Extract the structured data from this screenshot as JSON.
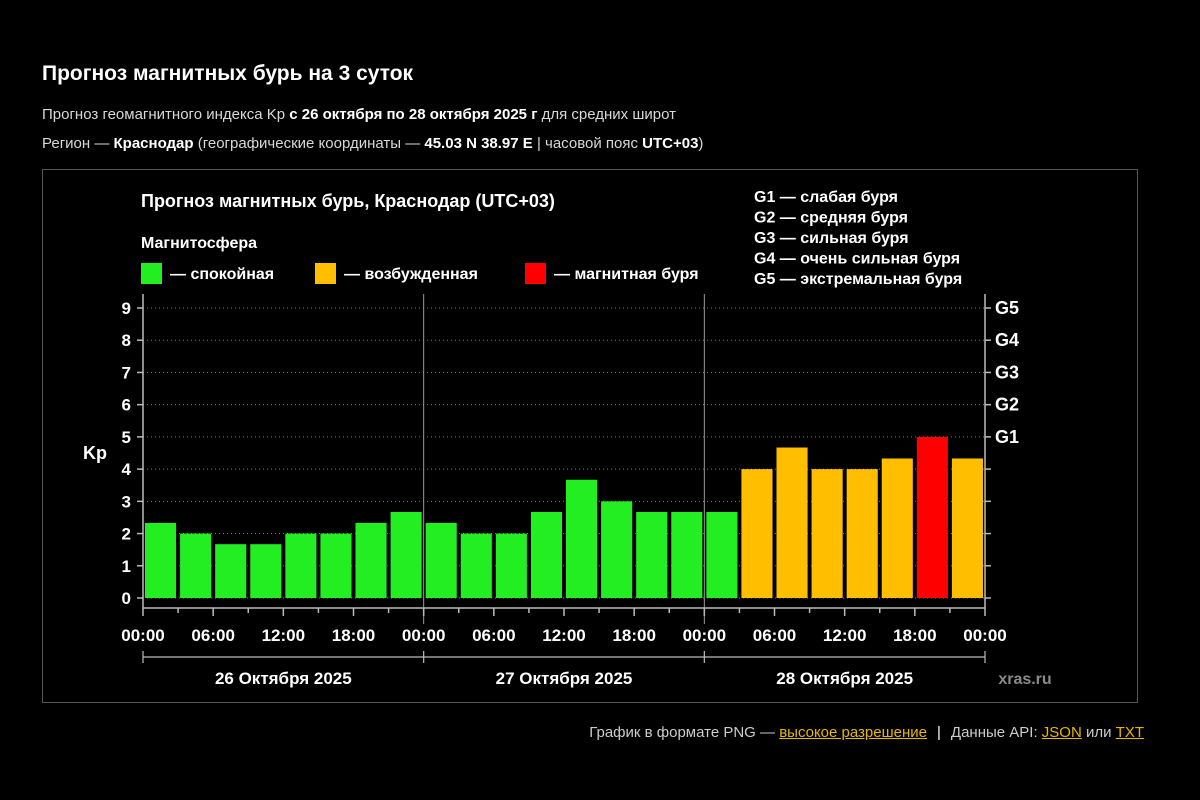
{
  "page": {
    "title": "Прогноз магнитных бурь на 3 суток",
    "line1": {
      "prefix": "Прогноз геомагнитного индекса Kp ",
      "range": "с 26 октября по 28 октября 2025 г",
      "suffix": " для средних широт"
    },
    "line2": {
      "prefix": "Регион — ",
      "region": "Краснодар",
      "mid": " (географические координаты — ",
      "coords": "45.03 N 38.97 E",
      "tz_label": " | часовой пояс ",
      "tz": "UTC+03",
      "end": ")"
    }
  },
  "footer": {
    "png_text": "График в формате PNG — ",
    "png_link": "высокое разрешение",
    "separator": "|",
    "api_text": "Данные API: ",
    "json_link": "JSON",
    "or_text": " или ",
    "txt_link": "TXT"
  },
  "colors": {
    "background": "#000000",
    "quiet": "#22ee22",
    "active": "#ffbf00",
    "storm": "#ff0000",
    "link": "#e6b800",
    "grid": "#777777",
    "axis": "#bbbbbb"
  },
  "chart_data": {
    "type": "bar",
    "title": "Прогноз магнитных бурь, Краснодар (UTC+03)",
    "ylabel": "Kp",
    "ylim": [
      0,
      9
    ],
    "yticks": [
      "0",
      "1",
      "2",
      "3",
      "4",
      "5",
      "6",
      "7",
      "8",
      "9"
    ],
    "grid": true,
    "legend": {
      "title": "Магнитосфера",
      "placement": "top-left",
      "items": [
        {
          "label": "— спокойная",
          "color": "#22ee22"
        },
        {
          "label": "— возбужденная",
          "color": "#ffbf00"
        },
        {
          "label": "— магнитная буря",
          "color": "#ff0000"
        }
      ]
    },
    "storm_scale": {
      "placement": "top-right",
      "items": [
        "G1 — слабая буря",
        "G2 — средняя буря",
        "G3 — сильная буря",
        "G4 — очень сильная буря",
        "G5 — экстремальная буря"
      ]
    },
    "right_axis": [
      {
        "label": "G1",
        "kp": 5
      },
      {
        "label": "G2",
        "kp": 6
      },
      {
        "label": "G3",
        "kp": 7
      },
      {
        "label": "G4",
        "kp": 8
      },
      {
        "label": "G5",
        "kp": 9
      }
    ],
    "x_tick_labels": [
      "00:00",
      "06:00",
      "12:00",
      "18:00",
      "00:00",
      "06:00",
      "12:00",
      "18:00",
      "00:00",
      "06:00",
      "12:00",
      "18:00",
      "00:00"
    ],
    "days": [
      "26 Октября 2025",
      "27 Октября 2025",
      "28 Октября 2025"
    ],
    "watermark": "xras.ru",
    "values": [
      2.33,
      2.0,
      1.67,
      1.67,
      2.0,
      2.0,
      2.33,
      2.67,
      2.33,
      2.0,
      2.0,
      2.67,
      3.67,
      3.0,
      2.67,
      2.67,
      2.67,
      4.0,
      4.67,
      4.0,
      4.0,
      4.33,
      5.0,
      4.33
    ],
    "levels": [
      "quiet",
      "quiet",
      "quiet",
      "quiet",
      "quiet",
      "quiet",
      "quiet",
      "quiet",
      "quiet",
      "quiet",
      "quiet",
      "quiet",
      "quiet",
      "quiet",
      "quiet",
      "quiet",
      "quiet",
      "active",
      "active",
      "active",
      "active",
      "active",
      "storm",
      "active"
    ]
  }
}
